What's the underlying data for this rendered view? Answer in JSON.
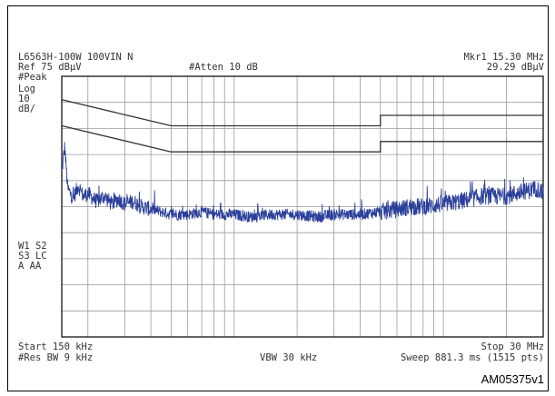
{
  "header": {
    "title": "L6563H-100W 100VIN N",
    "ref_level": "Ref 75 dBµV",
    "attenuation": "#Atten 10 dB",
    "marker_label": "Mkr1  15.30 MHz",
    "marker_value": "29.29 dBµV"
  },
  "side_labels": {
    "detector": "#Peak",
    "scale_type": "Log",
    "scale_value": "10",
    "scale_unit": "dB/",
    "trace_line1": "W1  S2",
    "trace_line2": "S3  LC",
    "trace_line3": "A   AA"
  },
  "footer": {
    "start": "Start 150 kHz",
    "stop": "Stop 30 MHz",
    "rbw": "#Res BW 9 kHz",
    "vbw": "VBW 30 kHz",
    "sweep": "Sweep 881.3 ms (1515 pts)"
  },
  "figure_ref": "AM05375v1",
  "colors": {
    "trace": "#2a3f9a",
    "grid": "#9a9a9a",
    "limit": "#333333",
    "frame": "#000000"
  },
  "chart_data": {
    "type": "line",
    "x_scale": "log",
    "x_unit": "MHz",
    "y_unit": "dBµV",
    "xlim": [
      0.15,
      30
    ],
    "ylim": [
      -25,
      75
    ],
    "grid": true,
    "limit_lines": [
      {
        "x": [
          0.15,
          0.5,
          0.5,
          5,
          5,
          30
        ],
        "y": [
          66,
          56,
          56,
          56,
          60,
          60
        ]
      },
      {
        "x": [
          0.15,
          0.5,
          0.5,
          5,
          5,
          30
        ],
        "y": [
          56,
          46,
          46,
          46,
          50,
          50
        ]
      }
    ],
    "series": [
      {
        "x": [
          0.15,
          0.155,
          0.16,
          0.17,
          0.18,
          0.19,
          0.2,
          0.22,
          0.24,
          0.26,
          0.28,
          0.3,
          0.33,
          0.36,
          0.4,
          0.45,
          0.5,
          0.6,
          0.7,
          0.8,
          1.0,
          1.2,
          1.5,
          2.0,
          2.5,
          3.0,
          4.0,
          5.0,
          6.0,
          7.0,
          8.0,
          10.0,
          12.0,
          15.3,
          18.0,
          20.0,
          22.0,
          25.0,
          28.0,
          30.0
        ],
        "y": [
          38,
          48,
          32,
          28,
          33,
          29,
          30,
          27,
          29,
          26,
          28,
          26,
          27,
          25,
          24,
          23,
          22,
          22,
          23,
          22,
          22,
          21,
          22,
          22,
          21,
          22,
          22,
          23,
          24,
          25,
          25,
          26,
          27,
          29,
          29,
          29,
          30,
          31,
          32,
          30
        ]
      }
    ]
  }
}
